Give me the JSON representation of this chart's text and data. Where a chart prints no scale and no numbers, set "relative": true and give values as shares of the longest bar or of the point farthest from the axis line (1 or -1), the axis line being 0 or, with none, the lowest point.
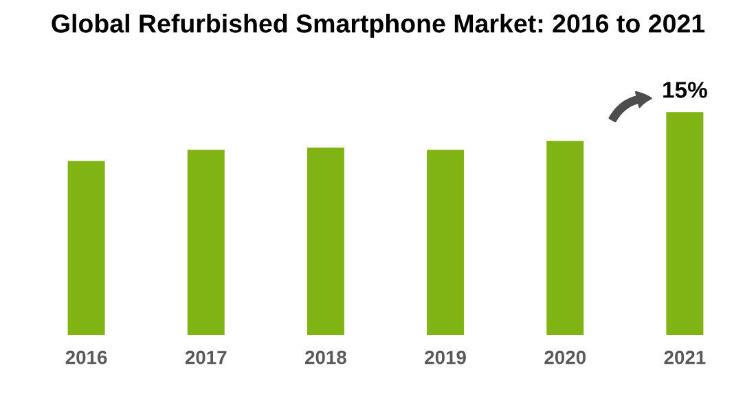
{
  "chart_data": {
    "type": "bar",
    "title": "Global Refurbished Smartphone Market: 2016 to 2021",
    "categories": [
      "2016",
      "2017",
      "2018",
      "2019",
      "2020",
      "2021"
    ],
    "values": [
      0.78,
      0.83,
      0.84,
      0.83,
      0.87,
      1
    ],
    "color": "#7fb414",
    "relative": true,
    "grid": false,
    "legend": false,
    "annotations": [
      {
        "text": "15%",
        "x": "2021",
        "y": 1
      }
    ]
  }
}
